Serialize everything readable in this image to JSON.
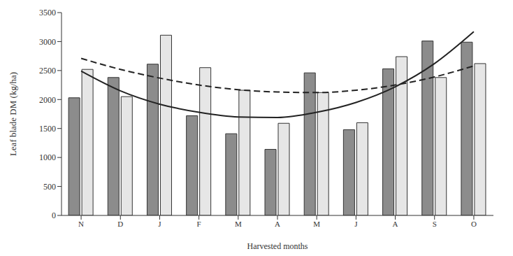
{
  "chart_data": {
    "type": "bar",
    "categories": [
      "N",
      "D",
      "J",
      "F",
      "M",
      "A",
      "M",
      "J",
      "A",
      "S",
      "O"
    ],
    "series": [
      {
        "type": "bar",
        "color": "#8c8c8c",
        "values": [
          2030,
          2380,
          2610,
          1720,
          1410,
          1140,
          2460,
          1480,
          2530,
          3010,
          2990
        ]
      },
      {
        "type": "bar",
        "color": "#e6e6e6",
        "values": [
          2520,
          2050,
          3110,
          2550,
          2160,
          1590,
          2120,
          1600,
          2740,
          2380,
          2620
        ]
      },
      {
        "type": "line",
        "color": "#222222",
        "line_style": "solid",
        "values": [
          2490,
          2150,
          1920,
          1780,
          1700,
          1690,
          1780,
          1950,
          2220,
          2620,
          3170
        ]
      },
      {
        "type": "line",
        "color": "#222222",
        "line_style": "dashed",
        "values": [
          2710,
          2520,
          2370,
          2250,
          2170,
          2130,
          2120,
          2160,
          2250,
          2390,
          2580
        ]
      }
    ],
    "x_label": "Harvested months",
    "y_label": "Leaf blade DM (kg/ha)",
    "ylim": [
      0,
      3500
    ],
    "yticks": [
      0,
      500,
      1000,
      1500,
      2000,
      2500,
      3000,
      3500
    ],
    "grid": false
  }
}
